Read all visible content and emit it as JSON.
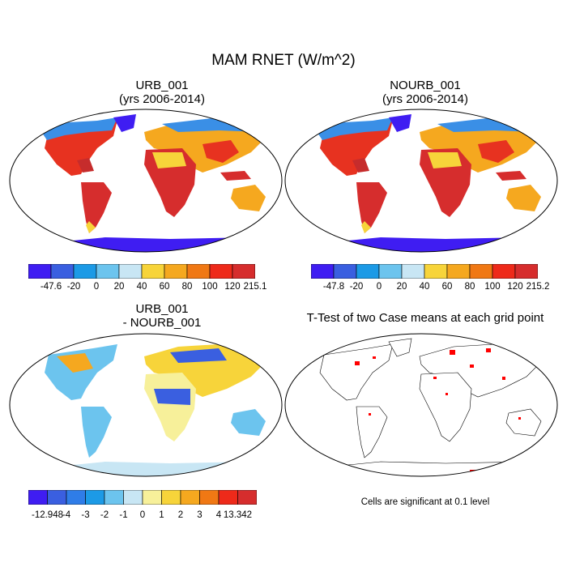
{
  "figure": {
    "title": "MAM RNET (W/m^2)",
    "sig_note": "Cells are significant at 0.1 level"
  },
  "panels": [
    {
      "title_line1": "URB_001",
      "title_line2": "(yrs 2006-2014)"
    },
    {
      "title_line1": "NOURB_001",
      "title_line2": "(yrs 2006-2014)"
    },
    {
      "title_line1": "URB_001",
      "title_line2": "- NOURB_001"
    },
    {
      "title_line1": "T-Test of two Case means at each grid point",
      "title_line2": ""
    }
  ],
  "colorbars": [
    {
      "labels": [
        "-47.6",
        "-20",
        "0",
        "20",
        "40",
        "60",
        "80",
        "100",
        "120",
        "215.1"
      ],
      "colors": [
        "#3f1df2",
        "#3a5fe0",
        "#1c9ae6",
        "#6cc4ee",
        "#c8e6f4",
        "#f7d43a",
        "#f5a81f",
        "#f07814",
        "#ee2a1a",
        "#d62d2d"
      ]
    },
    {
      "labels": [
        "-47.8",
        "-20",
        "0",
        "20",
        "40",
        "60",
        "80",
        "100",
        "120",
        "215.2"
      ],
      "colors": [
        "#3f1df2",
        "#3a5fe0",
        "#1c9ae6",
        "#6cc4ee",
        "#c8e6f4",
        "#f7d43a",
        "#f5a81f",
        "#f07814",
        "#ee2a1a",
        "#d62d2d"
      ]
    },
    {
      "labels": [
        "-12.948",
        "-4",
        "-3",
        "-2",
        "-1",
        "0",
        "1",
        "2",
        "3",
        "4",
        "13.342"
      ],
      "colors": [
        "#3f1df2",
        "#3a5fe0",
        "#2f7de8",
        "#1c9ae6",
        "#6cc4ee",
        "#c8e6f4",
        "#f7f09a",
        "#f7d43a",
        "#f5a81f",
        "#f07814",
        "#ee2a1a",
        "#d62d2d"
      ]
    }
  ]
}
